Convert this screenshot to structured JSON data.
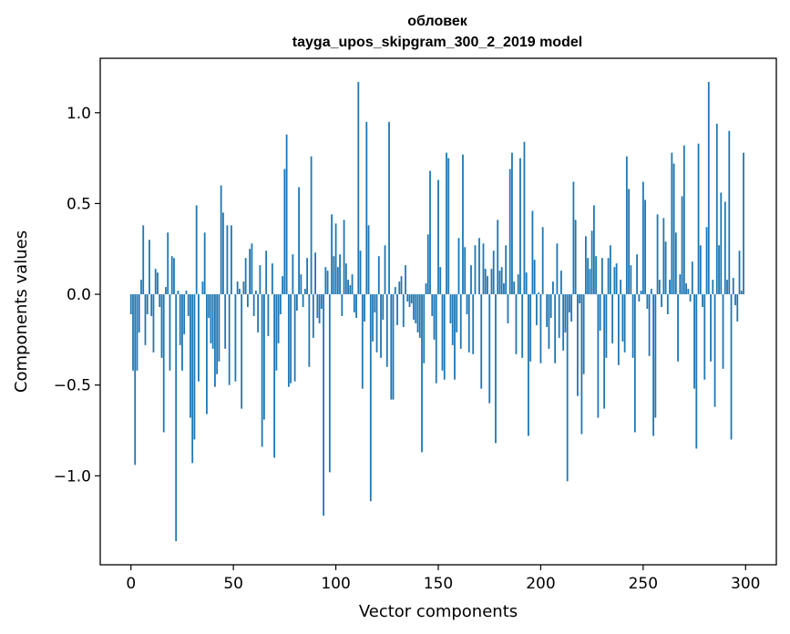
{
  "chart_data": {
    "type": "bar",
    "title": "обловек",
    "subtitle": "tayga_upos_skipgram_300_2_2019 model",
    "xlabel": "Vector components",
    "ylabel": "Components values",
    "xlim": [
      -15,
      315
    ],
    "ylim": [
      -1.49,
      1.3
    ],
    "grid": false,
    "bar_color": "#1f77b4",
    "x_ticks": [
      0,
      50,
      100,
      150,
      200,
      250,
      300
    ],
    "x_tick_labels": [
      "0",
      "50",
      "100",
      "150",
      "200",
      "250",
      "300"
    ],
    "y_ticks": [
      -1.0,
      -0.5,
      0.0,
      0.5,
      1.0
    ],
    "y_tick_labels": [
      "−1.0",
      "−0.5",
      "0.0",
      "0.5",
      "1.0"
    ],
    "values": [
      -0.11,
      -0.42,
      -0.94,
      -0.42,
      -0.21,
      0.08,
      0.38,
      -0.28,
      -0.11,
      0.3,
      -0.12,
      -0.32,
      0.14,
      0.12,
      -0.07,
      -0.35,
      -0.76,
      0.04,
      0.34,
      -0.42,
      0.21,
      0.2,
      -1.36,
      0.02,
      -0.28,
      -0.42,
      -0.22,
      0.02,
      -0.12,
      -0.68,
      -0.93,
      -0.8,
      0.49,
      -0.48,
      0.0,
      0.07,
      0.34,
      -0.66,
      -0.13,
      -0.27,
      -0.3,
      -0.51,
      -0.44,
      -0.37,
      0.6,
      0.45,
      -0.3,
      0.38,
      -0.5,
      0.38,
      0.0,
      -0.48,
      0.07,
      0.03,
      -0.63,
      0.07,
      0.2,
      -0.07,
      0.25,
      0.28,
      -0.12,
      0.02,
      -0.21,
      0.16,
      -0.84,
      -0.69,
      0.24,
      -0.23,
      0.0,
      0.17,
      -0.9,
      -0.42,
      -0.27,
      -0.11,
      0.1,
      0.69,
      0.88,
      -0.51,
      -0.49,
      0.22,
      -0.48,
      -0.09,
      0.59,
      0.11,
      -0.07,
      0.03,
      0.2,
      -0.4,
      0.76,
      -0.24,
      0.23,
      -0.13,
      -0.16,
      -0.08,
      -1.22,
      0.15,
      0.13,
      -0.98,
      0.44,
      0.21,
      0.39,
      0.15,
      0.22,
      -0.12,
      0.41,
      0.17,
      0.08,
      0.05,
      0.11,
      -0.1,
      -0.13,
      1.17,
      0.24,
      -0.52,
      -0.15,
      0.95,
      0.38,
      -1.14,
      -0.26,
      -0.1,
      -0.32,
      0.21,
      -0.35,
      -0.14,
      0.27,
      -0.4,
      0.95,
      -0.58,
      -0.58,
      0.04,
      -0.17,
      0.07,
      0.1,
      -0.18,
      0.16,
      -0.04,
      -0.07,
      -0.05,
      -0.14,
      -0.16,
      -0.21,
      -0.24,
      -0.87,
      -0.38,
      0.06,
      0.33,
      0.68,
      -0.12,
      -0.25,
      -0.49,
      0.63,
      0.15,
      -0.42,
      -0.47,
      0.78,
      0.75,
      -0.16,
      -0.28,
      -0.47,
      -0.21,
      0.31,
      -0.3,
      0.77,
      0.26,
      -0.11,
      -0.32,
      0.16,
      -0.33,
      0.27,
      0.0,
      0.31,
      -0.52,
      0.28,
      0.14,
      0.1,
      -0.6,
      0.14,
      0.24,
      -0.82,
      0.41,
      0.13,
      0.15,
      0.06,
      0.27,
      -0.16,
      0.69,
      0.78,
      0.07,
      -0.33,
      0.11,
      0.75,
      -0.35,
      0.84,
      0.12,
      -0.78,
      -0.37,
      0.46,
      0.19,
      -0.17,
      0.01,
      -0.38,
      0.37,
      0.0,
      -0.18,
      -0.3,
      -0.13,
      0.07,
      -0.38,
      0.28,
      -0.24,
      0.13,
      -0.31,
      -0.21,
      -1.03,
      -0.1,
      -0.15,
      0.62,
      0.41,
      -0.56,
      -0.05,
      -0.77,
      -0.44,
      0.32,
      0.2,
      0.14,
      0.35,
      0.49,
      0.21,
      -0.68,
      -0.2,
      0.2,
      -0.63,
      -0.35,
      0.2,
      0.27,
      -0.27,
      0.15,
      0.17,
      -0.39,
      0.08,
      -0.26,
      -0.32,
      0.76,
      0.58,
      0.16,
      -0.35,
      -0.76,
      0.22,
      -0.04,
      0.02,
      0.62,
      0.52,
      -0.08,
      -0.34,
      0.03,
      -0.78,
      -0.68,
      0.44,
      0.08,
      -0.07,
      0.42,
      0.29,
      -0.11,
      0.08,
      0.78,
      0.72,
      0.34,
      -0.37,
      0.11,
      0.54,
      0.82,
      0.06,
      0.03,
      -0.04,
      0.18,
      -0.52,
      -0.85,
      0.83,
      0.27,
      -0.07,
      -0.47,
      0.37,
      1.17,
      -0.37,
      0.08,
      -0.62,
      0.94,
      0.27,
      0.56,
      -0.41,
      0.51,
      0.08,
      0.9,
      -0.8,
      0.09,
      -0.06,
      -0.15,
      0.24,
      0.02,
      0.78
    ]
  }
}
